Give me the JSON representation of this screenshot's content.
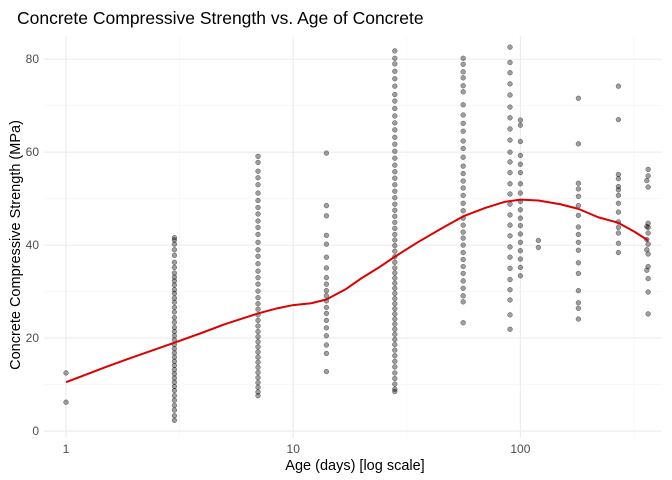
{
  "chart_data": {
    "type": "scatter",
    "title": "Concrete Compressive Strength vs. Age of Concrete",
    "xlabel": "Age (days) [log scale]",
    "ylabel": "Concrete Compressive Strength (MPa)",
    "x_scale": "log10",
    "xlim": [
      0.8,
      420
    ],
    "ylim": [
      -1.5,
      85
    ],
    "x_ticks": [
      1,
      10,
      100
    ],
    "x_tick_labels": [
      "1",
      "10",
      "100"
    ],
    "y_ticks": [
      0,
      20,
      40,
      60,
      80
    ],
    "y_tick_labels": [
      "0",
      "20",
      "40",
      "60",
      "80"
    ],
    "grid": true,
    "legend": "none",
    "point_color": "#000000",
    "trend_color": "#dd0000",
    "series": [
      {
        "type": "scatter",
        "points": [
          [
            1,
            12.5
          ],
          [
            1,
            6.2
          ],
          [
            3,
            41.6
          ],
          [
            3,
            41.1
          ],
          [
            3,
            40.2
          ],
          [
            3,
            39.0
          ],
          [
            3,
            37.8
          ],
          [
            3,
            36.3
          ],
          [
            3,
            35.2
          ],
          [
            3,
            34.0
          ],
          [
            3,
            33.1
          ],
          [
            3,
            32.3
          ],
          [
            3,
            31.4
          ],
          [
            3,
            30.4
          ],
          [
            3,
            29.6
          ],
          [
            3,
            28.6
          ],
          [
            3,
            27.7
          ],
          [
            3,
            26.6
          ],
          [
            3,
            25.6
          ],
          [
            3,
            24.4
          ],
          [
            3,
            23.4
          ],
          [
            3,
            22.3
          ],
          [
            3,
            21.4
          ],
          [
            3,
            20.5
          ],
          [
            3,
            19.6
          ],
          [
            3,
            18.6
          ],
          [
            3,
            17.7
          ],
          [
            3,
            16.8
          ],
          [
            3,
            15.9
          ],
          [
            3,
            15.0
          ],
          [
            3,
            14.1
          ],
          [
            3,
            13.2
          ],
          [
            3,
            12.3
          ],
          [
            3,
            11.4
          ],
          [
            3,
            10.5
          ],
          [
            3,
            9.6
          ],
          [
            3,
            8.7
          ],
          [
            3,
            7.6
          ],
          [
            3,
            6.6
          ],
          [
            3,
            5.5
          ],
          [
            3,
            4.5
          ],
          [
            3,
            3.3
          ],
          [
            3,
            2.3
          ],
          [
            7,
            59.1
          ],
          [
            7,
            57.8
          ],
          [
            7,
            55.9
          ],
          [
            7,
            54.5
          ],
          [
            7,
            53.0
          ],
          [
            7,
            51.2
          ],
          [
            7,
            49.6
          ],
          [
            7,
            48.1
          ],
          [
            7,
            46.7
          ],
          [
            7,
            45.2
          ],
          [
            7,
            43.8
          ],
          [
            7,
            42.3
          ],
          [
            7,
            40.6
          ],
          [
            7,
            39.0
          ],
          [
            7,
            37.6
          ],
          [
            7,
            36.0
          ],
          [
            7,
            34.4
          ],
          [
            7,
            33.0
          ],
          [
            7,
            31.6
          ],
          [
            7,
            30.1
          ],
          [
            7,
            28.7
          ],
          [
            7,
            27.4
          ],
          [
            7,
            26.2
          ],
          [
            7,
            25.0
          ],
          [
            7,
            23.8
          ],
          [
            7,
            22.6
          ],
          [
            7,
            21.4
          ],
          [
            7,
            20.3
          ],
          [
            7,
            19.2
          ],
          [
            7,
            18.1
          ],
          [
            7,
            17.0
          ],
          [
            7,
            15.9
          ],
          [
            7,
            14.8
          ],
          [
            7,
            13.7
          ],
          [
            7,
            12.6
          ],
          [
            7,
            11.5
          ],
          [
            7,
            10.4
          ],
          [
            7,
            9.4
          ],
          [
            7,
            8.4
          ],
          [
            7,
            7.6
          ],
          [
            14,
            59.8
          ],
          [
            14,
            48.5
          ],
          [
            14,
            46.3
          ],
          [
            14,
            42.1
          ],
          [
            14,
            40.2
          ],
          [
            14,
            37.4
          ],
          [
            14,
            35.1
          ],
          [
            14,
            33.0
          ],
          [
            14,
            31.6
          ],
          [
            14,
            30.2
          ],
          [
            14,
            29.1
          ],
          [
            14,
            28.0
          ],
          [
            14,
            26.6
          ],
          [
            14,
            25.3
          ],
          [
            14,
            23.8
          ],
          [
            14,
            22.2
          ],
          [
            14,
            20.5
          ],
          [
            14,
            18.5
          ],
          [
            14,
            16.7
          ],
          [
            14,
            12.8
          ],
          [
            28,
            81.8
          ],
          [
            28,
            80.2
          ],
          [
            28,
            79.0
          ],
          [
            28,
            77.4
          ],
          [
            28,
            75.8
          ],
          [
            28,
            74.2
          ],
          [
            28,
            72.4
          ],
          [
            28,
            71.0
          ],
          [
            28,
            69.4
          ],
          [
            28,
            67.8
          ],
          [
            28,
            66.3
          ],
          [
            28,
            64.8
          ],
          [
            28,
            63.2
          ],
          [
            28,
            61.7
          ],
          [
            28,
            60.2
          ],
          [
            28,
            58.7
          ],
          [
            28,
            57.2
          ],
          [
            28,
            55.8
          ],
          [
            28,
            54.4
          ],
          [
            28,
            53.0
          ],
          [
            28,
            51.6
          ],
          [
            28,
            50.2
          ],
          [
            28,
            48.8
          ],
          [
            28,
            47.5
          ],
          [
            28,
            46.2
          ],
          [
            28,
            44.9
          ],
          [
            28,
            43.6
          ],
          [
            28,
            42.3
          ],
          [
            28,
            41.1
          ],
          [
            28,
            39.9
          ],
          [
            28,
            38.7
          ],
          [
            28,
            37.5
          ],
          [
            28,
            36.3
          ],
          [
            28,
            35.1
          ],
          [
            28,
            34.0
          ],
          [
            28,
            32.9
          ],
          [
            28,
            31.8
          ],
          [
            28,
            30.7
          ],
          [
            28,
            29.6
          ],
          [
            28,
            28.5
          ],
          [
            28,
            27.4
          ],
          [
            28,
            26.3
          ],
          [
            28,
            25.2
          ],
          [
            28,
            24.1
          ],
          [
            28,
            23.0
          ],
          [
            28,
            21.9
          ],
          [
            28,
            20.8
          ],
          [
            28,
            19.7
          ],
          [
            28,
            18.6
          ],
          [
            28,
            17.4
          ],
          [
            28,
            16.2
          ],
          [
            28,
            15.0
          ],
          [
            28,
            13.8
          ],
          [
            28,
            12.5
          ],
          [
            28,
            11.3
          ],
          [
            28,
            10.1
          ],
          [
            28,
            9.0
          ],
          [
            28,
            8.5
          ],
          [
            56,
            80.2
          ],
          [
            56,
            78.9
          ],
          [
            56,
            77.3
          ],
          [
            56,
            76.0
          ],
          [
            56,
            74.3
          ],
          [
            56,
            73.0
          ],
          [
            56,
            70.2
          ],
          [
            56,
            68.0
          ],
          [
            56,
            66.2
          ],
          [
            56,
            64.5
          ],
          [
            56,
            62.4
          ],
          [
            56,
            60.8
          ],
          [
            56,
            58.9
          ],
          [
            56,
            57.0
          ],
          [
            56,
            55.4
          ],
          [
            56,
            53.8
          ],
          [
            56,
            52.3
          ],
          [
            56,
            50.7
          ],
          [
            56,
            49.0
          ],
          [
            56,
            47.4
          ],
          [
            56,
            45.8
          ],
          [
            56,
            44.3
          ],
          [
            56,
            42.8
          ],
          [
            56,
            41.5
          ],
          [
            56,
            40.0
          ],
          [
            56,
            38.4
          ],
          [
            56,
            36.9
          ],
          [
            56,
            35.4
          ],
          [
            56,
            33.9
          ],
          [
            56,
            32.3
          ],
          [
            56,
            30.7
          ],
          [
            56,
            29.1
          ],
          [
            56,
            27.8
          ],
          [
            56,
            23.3
          ],
          [
            90,
            82.6
          ],
          [
            90,
            79.3
          ],
          [
            90,
            77.1
          ],
          [
            90,
            74.7
          ],
          [
            90,
            72.3
          ],
          [
            90,
            69.7
          ],
          [
            90,
            67.4
          ],
          [
            90,
            65.0
          ],
          [
            90,
            62.6
          ],
          [
            90,
            60.0
          ],
          [
            90,
            57.9
          ],
          [
            90,
            55.6
          ],
          [
            90,
            53.2
          ],
          [
            90,
            51.0
          ],
          [
            90,
            48.8
          ],
          [
            90,
            46.5
          ],
          [
            90,
            44.3
          ],
          [
            90,
            42.0
          ],
          [
            90,
            39.6
          ],
          [
            90,
            37.4
          ],
          [
            90,
            35.0
          ],
          [
            90,
            32.6
          ],
          [
            90,
            30.4
          ],
          [
            90,
            28.2
          ],
          [
            90,
            25.0
          ],
          [
            90,
            21.9
          ],
          [
            100,
            66.9
          ],
          [
            100,
            65.8
          ],
          [
            100,
            62.3
          ],
          [
            100,
            59.3
          ],
          [
            100,
            57.4
          ],
          [
            100,
            55.6
          ],
          [
            100,
            53.2
          ],
          [
            100,
            51.2
          ],
          [
            100,
            49.4
          ],
          [
            100,
            47.6
          ],
          [
            100,
            45.8
          ],
          [
            100,
            44.2
          ],
          [
            100,
            42.4
          ],
          [
            100,
            40.6
          ],
          [
            100,
            38.8
          ],
          [
            100,
            37.0
          ],
          [
            100,
            35.2
          ],
          [
            100,
            33.4
          ],
          [
            120,
            41.0
          ],
          [
            120,
            39.5
          ],
          [
            180,
            71.6
          ],
          [
            180,
            61.8
          ],
          [
            180,
            53.3
          ],
          [
            180,
            52.1
          ],
          [
            180,
            50.5
          ],
          [
            180,
            48.5
          ],
          [
            180,
            46.4
          ],
          [
            180,
            43.9
          ],
          [
            180,
            42.3
          ],
          [
            180,
            40.6
          ],
          [
            180,
            38.9
          ],
          [
            180,
            36.2
          ],
          [
            180,
            33.9
          ],
          [
            180,
            30.2
          ],
          [
            180,
            27.6
          ],
          [
            180,
            26.4
          ],
          [
            180,
            24.1
          ],
          [
            270,
            74.2
          ],
          [
            270,
            67.0
          ],
          [
            270,
            55.2
          ],
          [
            270,
            54.3
          ],
          [
            270,
            52.6
          ],
          [
            270,
            51.9
          ],
          [
            270,
            50.7
          ],
          [
            270,
            49.0
          ],
          [
            270,
            47.1
          ],
          [
            270,
            45.0
          ],
          [
            270,
            43.8
          ],
          [
            270,
            42.6
          ],
          [
            270,
            40.4
          ],
          [
            270,
            38.4
          ],
          [
            365,
            56.3
          ],
          [
            365,
            54.9
          ],
          [
            365,
            52.5
          ],
          [
            365,
            44.7
          ],
          [
            365,
            43.8
          ],
          [
            365,
            42.6
          ],
          [
            365,
            40.2
          ],
          [
            365,
            38.1
          ],
          [
            365,
            35.4
          ],
          [
            365,
            32.8
          ],
          [
            365,
            29.9
          ],
          [
            365,
            25.2
          ],
          [
            360,
            53.9
          ],
          [
            360,
            44.0
          ],
          [
            360,
            41.2
          ],
          [
            360,
            39.0
          ],
          [
            360,
            34.6
          ]
        ]
      },
      {
        "type": "line",
        "points": [
          [
            1,
            10.5
          ],
          [
            1.5,
            13.8
          ],
          [
            2,
            16.0
          ],
          [
            3,
            19.0
          ],
          [
            4,
            21.2
          ],
          [
            5,
            23.0
          ],
          [
            7,
            25.3
          ],
          [
            8.5,
            26.4
          ],
          [
            10,
            27.1
          ],
          [
            12,
            27.5
          ],
          [
            14,
            28.3
          ],
          [
            17,
            30.5
          ],
          [
            20,
            32.9
          ],
          [
            24,
            35.3
          ],
          [
            28,
            37.5
          ],
          [
            35,
            40.5
          ],
          [
            45,
            43.6
          ],
          [
            56,
            46.2
          ],
          [
            70,
            48.0
          ],
          [
            85,
            49.3
          ],
          [
            100,
            49.8
          ],
          [
            120,
            49.6
          ],
          [
            150,
            48.8
          ],
          [
            180,
            47.8
          ],
          [
            220,
            46.0
          ],
          [
            270,
            44.8
          ],
          [
            320,
            42.8
          ],
          [
            365,
            41.0
          ]
        ]
      }
    ]
  }
}
